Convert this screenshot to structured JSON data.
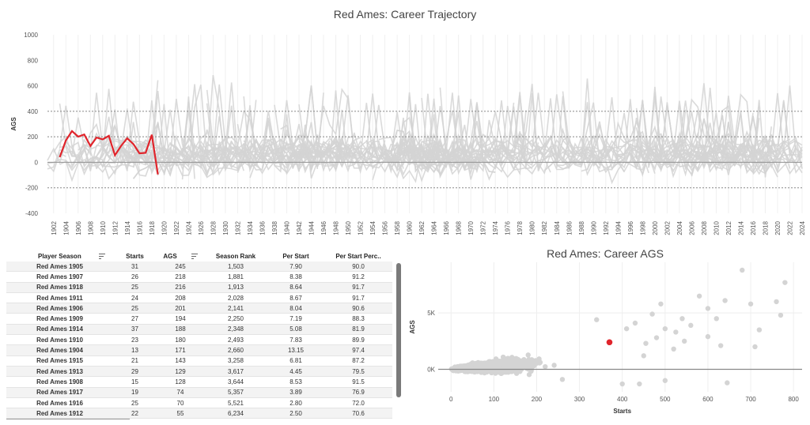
{
  "chart_data": [
    {
      "type": "line",
      "title": "Red Ames: Career Trajectory",
      "ylabel": "AGS",
      "ylim": [
        -400,
        1000
      ],
      "yticks": [
        -400,
        -200,
        0,
        200,
        400,
        600,
        800,
        1000
      ],
      "x_range": [
        1901,
        2024
      ],
      "xticks": [
        1902,
        1904,
        1906,
        1908,
        1910,
        1912,
        1914,
        1916,
        1918,
        1920,
        1922,
        1924,
        1926,
        1928,
        1930,
        1932,
        1934,
        1936,
        1938,
        1940,
        1942,
        1944,
        1946,
        1948,
        1950,
        1952,
        1954,
        1956,
        1958,
        1960,
        1962,
        1964,
        1966,
        1968,
        1970,
        1972,
        1974,
        1976,
        1978,
        1980,
        1982,
        1984,
        1986,
        1988,
        1990,
        1992,
        1994,
        1996,
        1998,
        2000,
        2002,
        2004,
        2006,
        2008,
        2010,
        2012,
        2014,
        2016,
        2018,
        2020,
        2022,
        2024
      ],
      "reference_lines": [
        400,
        200,
        -200
      ],
      "zero_line": 0,
      "background_series_color": "#d4d4d4",
      "highlight_color": "#e0242b",
      "series": [
        {
          "x": [
            1903,
            1904,
            1905,
            1906,
            1907,
            1908,
            1909,
            1910,
            1911,
            1912,
            1913,
            1914,
            1915,
            1916,
            1917,
            1918,
            1919
          ],
          "values": [
            40,
            171,
            245,
            201,
            218,
            128,
            194,
            180,
            208,
            55,
            129,
            188,
            143,
            70,
            74,
            216,
            -95
          ]
        }
      ]
    },
    {
      "type": "scatter",
      "title": "Red Ames: Career AGS",
      "xlabel": "Starts",
      "ylabel": "AGS",
      "xlim": [
        -30,
        820
      ],
      "ylim": [
        -2000,
        9500
      ],
      "xticks": [
        0,
        100,
        200,
        300,
        400,
        500,
        600,
        700,
        800
      ],
      "yticks": [
        {
          "value": 0,
          "label": "0K"
        },
        {
          "value": 5000,
          "label": "5K"
        }
      ],
      "background_points_color": "#d4d4d4",
      "highlight_color": "#e0242b",
      "highlight_point": {
        "x": 370,
        "y": 2400
      },
      "background_outliers": [
        {
          "x": 680,
          "y": 8800
        },
        {
          "x": 780,
          "y": 7700
        },
        {
          "x": 760,
          "y": 6000
        },
        {
          "x": 770,
          "y": 4800
        },
        {
          "x": 700,
          "y": 5800
        },
        {
          "x": 720,
          "y": 3500
        },
        {
          "x": 710,
          "y": 2000
        },
        {
          "x": 640,
          "y": 6100
        },
        {
          "x": 600,
          "y": 5400
        },
        {
          "x": 620,
          "y": 4500
        },
        {
          "x": 560,
          "y": 3900
        },
        {
          "x": 580,
          "y": 6500
        },
        {
          "x": 540,
          "y": 4500
        },
        {
          "x": 525,
          "y": 3300
        },
        {
          "x": 600,
          "y": 2900
        },
        {
          "x": 630,
          "y": 2100
        },
        {
          "x": 645,
          "y": -1200
        },
        {
          "x": 450,
          "y": 1200
        },
        {
          "x": 440,
          "y": -1300
        },
        {
          "x": 400,
          "y": -1300
        },
        {
          "x": 340,
          "y": 4400
        },
        {
          "x": 260,
          "y": -900
        },
        {
          "x": 490,
          "y": 5800
        },
        {
          "x": 470,
          "y": 4900
        },
        {
          "x": 500,
          "y": 3600
        },
        {
          "x": 480,
          "y": 2800
        },
        {
          "x": 430,
          "y": 4100
        },
        {
          "x": 455,
          "y": 2300
        },
        {
          "x": 520,
          "y": 1800
        },
        {
          "x": 545,
          "y": 2500
        },
        {
          "x": 500,
          "y": -1000
        },
        {
          "x": 410,
          "y": 3600
        }
      ]
    }
  ],
  "table": {
    "headers": [
      "Player Season",
      "Starts",
      "AGS",
      "Season Rank",
      "Per Start",
      "Per Start Perc.."
    ],
    "rows": [
      [
        "Red Ames 1905",
        "31",
        "245",
        "1,503",
        "7.90",
        "90.0"
      ],
      [
        "Red Ames 1907",
        "26",
        "218",
        "1,881",
        "8.38",
        "91.2"
      ],
      [
        "Red Ames 1918",
        "25",
        "216",
        "1,913",
        "8.64",
        "91.7"
      ],
      [
        "Red Ames 1911",
        "24",
        "208",
        "2,028",
        "8.67",
        "91.7"
      ],
      [
        "Red Ames 1906",
        "25",
        "201",
        "2,141",
        "8.04",
        "90.6"
      ],
      [
        "Red Ames 1909",
        "27",
        "194",
        "2,250",
        "7.19",
        "88.3"
      ],
      [
        "Red Ames 1914",
        "37",
        "188",
        "2,348",
        "5.08",
        "81.9"
      ],
      [
        "Red Ames 1910",
        "23",
        "180",
        "2,493",
        "7.83",
        "89.9"
      ],
      [
        "Red Ames 1904",
        "13",
        "171",
        "2,660",
        "13.15",
        "97.4"
      ],
      [
        "Red Ames 1915",
        "21",
        "143",
        "3,258",
        "6.81",
        "87.2"
      ],
      [
        "Red Ames 1913",
        "29",
        "129",
        "3,617",
        "4.45",
        "79.5"
      ],
      [
        "Red Ames 1908",
        "15",
        "128",
        "3,644",
        "8.53",
        "91.5"
      ],
      [
        "Red Ames 1917",
        "19",
        "74",
        "5,357",
        "3.89",
        "76.9"
      ],
      [
        "Red Ames 1916",
        "25",
        "70",
        "5,521",
        "2.80",
        "72.0"
      ],
      [
        "Red Ames 1912",
        "22",
        "55",
        "6,234",
        "2.50",
        "70.6"
      ]
    ]
  }
}
